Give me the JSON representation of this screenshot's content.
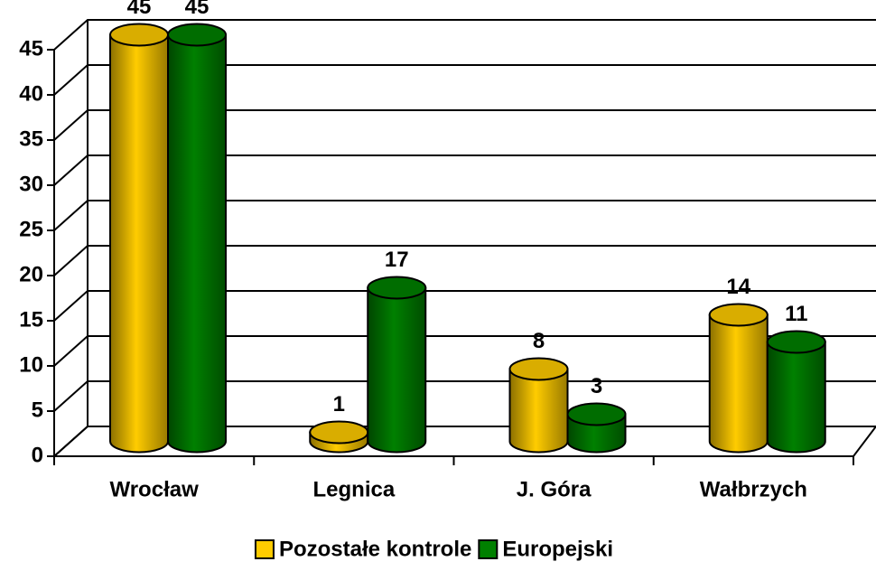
{
  "chart_data": {
    "type": "bar3d",
    "categories": [
      "Wrocław",
      "Legnica",
      "J. Góra",
      "Wałbrzych"
    ],
    "series": [
      {
        "name": "Pozostałe kontrole",
        "color": "#FFCC00",
        "values": [
          45,
          1,
          8,
          14
        ]
      },
      {
        "name": "Europejski",
        "color": "#008000",
        "values": [
          45,
          17,
          3,
          11
        ]
      }
    ],
    "ylim": [
      0,
      45
    ],
    "yticks": [
      0,
      5,
      10,
      15,
      20,
      25,
      30,
      35,
      40,
      45
    ],
    "grid": true,
    "legend": "bottom"
  }
}
